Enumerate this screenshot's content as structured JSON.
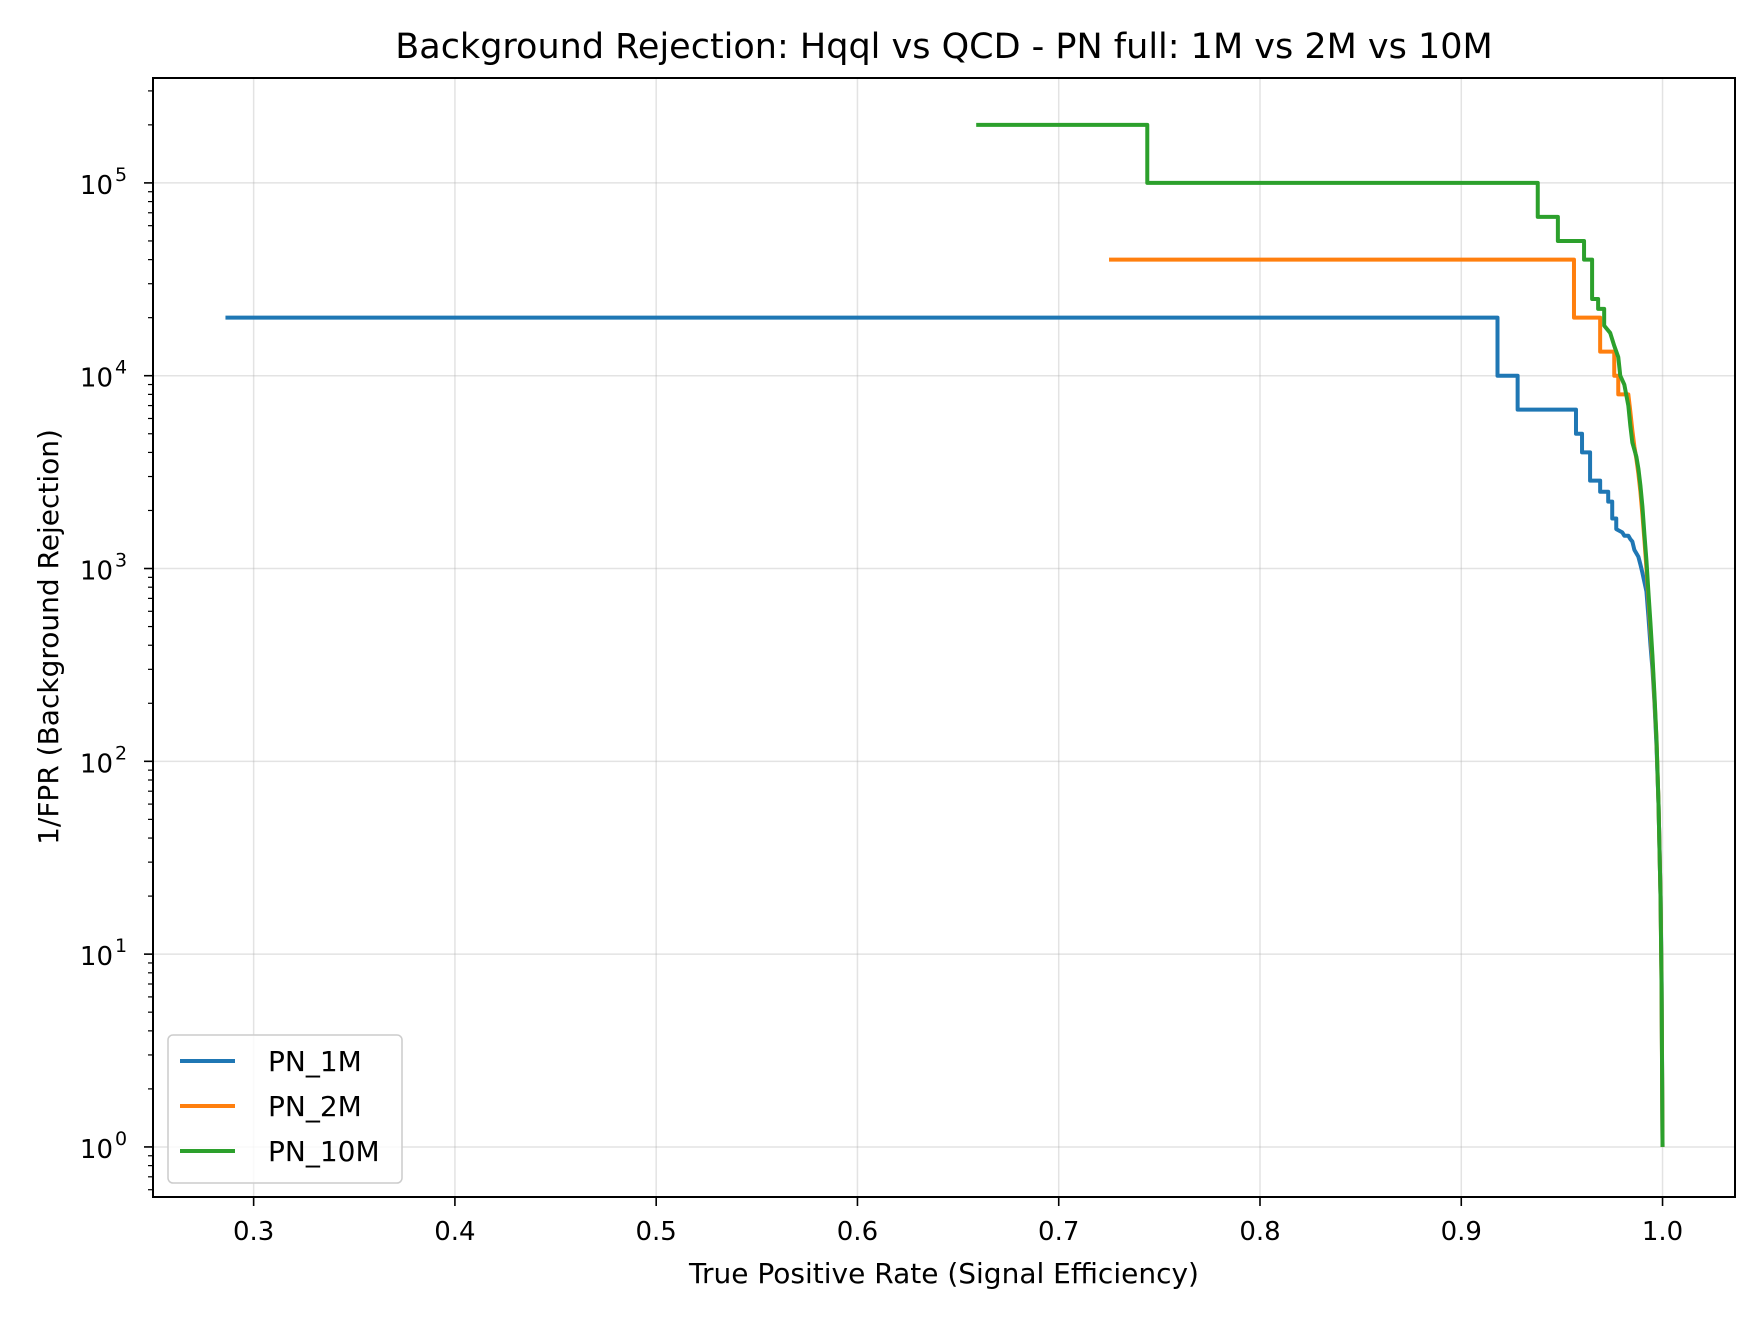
{
  "chart_data": {
    "type": "line",
    "title": "Background Rejection: Hqql vs QCD - PN full: 1M vs 2M vs 10M",
    "xlabel": "True Positive Rate (Signal Efficiency)",
    "ylabel": "1/FPR (Background Rejection)",
    "xlim": [
      0.25,
      1.036
    ],
    "ylim": [
      0.55,
      350000.0
    ],
    "yscale": "log",
    "grid": true,
    "legend_position": "lower-left",
    "x_ticks": [
      0.3,
      0.4,
      0.5,
      0.6,
      0.7,
      0.8,
      0.9,
      1.0
    ],
    "x_tick_labels": [
      "0.3",
      "0.4",
      "0.5",
      "0.6",
      "0.7",
      "0.8",
      "0.9",
      "1.0"
    ],
    "y_ticks": [
      {
        "value": 1,
        "base": "10",
        "exp": "0"
      },
      {
        "value": 10,
        "base": "10",
        "exp": "1"
      },
      {
        "value": 100,
        "base": "10",
        "exp": "2"
      },
      {
        "value": 1000,
        "base": "10",
        "exp": "3"
      },
      {
        "value": 10000,
        "base": "10",
        "exp": "4"
      },
      {
        "value": 100000,
        "base": "10",
        "exp": "5"
      }
    ],
    "series": [
      {
        "name": "PN_1M",
        "color": "#1f77b4",
        "points": [
          [
            0.286,
            20000
          ],
          [
            0.918,
            20000
          ],
          [
            0.918,
            10000
          ],
          [
            0.928,
            10000
          ],
          [
            0.928,
            6667
          ],
          [
            0.957,
            6667
          ],
          [
            0.957,
            5000
          ],
          [
            0.96,
            5000
          ],
          [
            0.96,
            4000
          ],
          [
            0.964,
            4000
          ],
          [
            0.964,
            2857
          ],
          [
            0.969,
            2857
          ],
          [
            0.969,
            2500
          ],
          [
            0.973,
            2500
          ],
          [
            0.973,
            2222
          ],
          [
            0.975,
            2222
          ],
          [
            0.975,
            1818
          ],
          [
            0.977,
            1818
          ],
          [
            0.977,
            1600
          ],
          [
            0.98,
            1540
          ],
          [
            0.981,
            1480
          ],
          [
            0.983,
            1480
          ],
          [
            0.984,
            1420
          ],
          [
            0.985,
            1380
          ],
          [
            0.986,
            1250
          ],
          [
            0.988,
            1150
          ],
          [
            0.989,
            1050
          ],
          [
            0.99,
            950
          ],
          [
            0.992,
            760
          ],
          [
            0.993,
            560
          ],
          [
            0.994,
            400
          ],
          [
            0.995,
            300
          ],
          [
            0.996,
            200
          ],
          [
            0.997,
            120
          ],
          [
            0.998,
            60
          ],
          [
            0.999,
            20
          ],
          [
            0.9995,
            8
          ],
          [
            1.0,
            1
          ]
        ]
      },
      {
        "name": "PN_2M",
        "color": "#ff7f0e",
        "points": [
          [
            0.725,
            40000
          ],
          [
            0.956,
            40000
          ],
          [
            0.956,
            20000
          ],
          [
            0.969,
            20000
          ],
          [
            0.969,
            13333
          ],
          [
            0.976,
            13333
          ],
          [
            0.976,
            10000
          ],
          [
            0.978,
            10000
          ],
          [
            0.978,
            8000
          ],
          [
            0.983,
            8000
          ],
          [
            0.984,
            6500
          ],
          [
            0.985,
            5200
          ],
          [
            0.986,
            4300
          ],
          [
            0.987,
            3700
          ],
          [
            0.988,
            3100
          ],
          [
            0.989,
            2500
          ],
          [
            0.99,
            1900
          ],
          [
            0.991,
            1400
          ],
          [
            0.992,
            1000
          ],
          [
            0.993,
            700
          ],
          [
            0.994,
            480
          ],
          [
            0.995,
            330
          ],
          [
            0.996,
            210
          ],
          [
            0.997,
            130
          ],
          [
            0.998,
            60
          ],
          [
            0.999,
            20
          ],
          [
            0.9995,
            7
          ],
          [
            1.0,
            1
          ]
        ]
      },
      {
        "name": "PN_10M",
        "color": "#2ca02c",
        "points": [
          [
            0.659,
            200000
          ],
          [
            0.744,
            200000
          ],
          [
            0.744,
            100000
          ],
          [
            0.938,
            100000
          ],
          [
            0.938,
            66667
          ],
          [
            0.948,
            66667
          ],
          [
            0.948,
            50000
          ],
          [
            0.961,
            50000
          ],
          [
            0.961,
            40000
          ],
          [
            0.965,
            40000
          ],
          [
            0.965,
            25000
          ],
          [
            0.968,
            25000
          ],
          [
            0.968,
            22222
          ],
          [
            0.971,
            22222
          ],
          [
            0.971,
            18182
          ],
          [
            0.974,
            16667
          ],
          [
            0.976,
            14286
          ],
          [
            0.978,
            12500
          ],
          [
            0.979,
            10000
          ],
          [
            0.981,
            9000
          ],
          [
            0.983,
            7000
          ],
          [
            0.984,
            5500
          ],
          [
            0.985,
            4500
          ],
          [
            0.987,
            3800
          ],
          [
            0.988,
            3300
          ],
          [
            0.989,
            2700
          ],
          [
            0.99,
            2100
          ],
          [
            0.991,
            1500
          ],
          [
            0.992,
            1100
          ],
          [
            0.993,
            750
          ],
          [
            0.994,
            520
          ],
          [
            0.995,
            350
          ],
          [
            0.996,
            220
          ],
          [
            0.997,
            130
          ],
          [
            0.998,
            60
          ],
          [
            0.999,
            20
          ],
          [
            0.9995,
            7
          ],
          [
            1.0,
            1
          ]
        ]
      }
    ]
  }
}
